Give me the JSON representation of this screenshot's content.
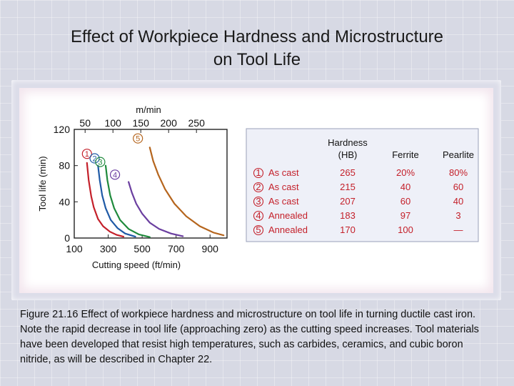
{
  "slide": {
    "title_line1": "Effect of Workpiece Hardness and Microstructure",
    "title_line2": "on Tool Life",
    "caption": "Figure 21.16  Effect of workpiece hardness and microstructure on tool life in turning ductile cast iron.  Note the rapid decrease in tool life (approaching zero) as the cutting speed increases.  Tool materials have been developed that resist high temperatures, such as carbides, ceramics, and cubic boron nitride, as will be described in Chapter 22."
  },
  "chart_data": {
    "type": "line",
    "title": "",
    "xlabel": "Cutting speed (ft/min)",
    "ylabel": "Tool life (min)",
    "top_axis_label": "m/min",
    "xlim": [
      100,
      1000
    ],
    "ylim": [
      0,
      120
    ],
    "x_ticks": [
      100,
      300,
      500,
      700,
      900
    ],
    "x_tick_labels": [
      "100",
      "300",
      "500",
      "700",
      "900"
    ],
    "top_ticks_ftmin": [
      164,
      328,
      492,
      656,
      820
    ],
    "top_tick_labels": [
      "50",
      "100",
      "150",
      "200",
      "250"
    ],
    "y_ticks": [
      0,
      40,
      80,
      120
    ],
    "y_tick_labels": [
      "0",
      "40",
      "80",
      "120"
    ],
    "grid": false,
    "series": [
      {
        "name": "1",
        "color": "#c4202a",
        "points": [
          [
            175,
            83
          ],
          [
            185,
            64
          ],
          [
            200,
            46
          ],
          [
            215,
            34
          ],
          [
            240,
            21
          ],
          [
            270,
            13
          ],
          [
            310,
            7
          ],
          [
            350,
            3.5
          ],
          [
            390,
            1.5
          ]
        ]
      },
      {
        "name": "2",
        "color": "#1f5aa6",
        "points": [
          [
            240,
            80
          ],
          [
            250,
            64
          ],
          [
            265,
            47
          ],
          [
            285,
            33
          ],
          [
            315,
            20
          ],
          [
            355,
            11
          ],
          [
            400,
            5
          ],
          [
            460,
            1.5
          ]
        ]
      },
      {
        "name": "3",
        "color": "#1f8a3c",
        "points": [
          [
            285,
            80
          ],
          [
            295,
            64
          ],
          [
            312,
            47
          ],
          [
            335,
            33
          ],
          [
            370,
            20
          ],
          [
            420,
            10
          ],
          [
            480,
            4
          ],
          [
            545,
            1
          ]
        ]
      },
      {
        "name": "4",
        "color": "#6b3fa0",
        "points": [
          [
            420,
            62
          ],
          [
            440,
            50
          ],
          [
            465,
            38
          ],
          [
            500,
            27
          ],
          [
            545,
            17
          ],
          [
            600,
            10
          ],
          [
            670,
            5
          ],
          [
            740,
            2
          ]
        ]
      },
      {
        "name": "5",
        "color": "#b5651d",
        "points": [
          [
            545,
            100
          ],
          [
            565,
            85
          ],
          [
            595,
            70
          ],
          [
            635,
            54
          ],
          [
            690,
            38
          ],
          [
            760,
            24
          ],
          [
            840,
            13
          ],
          [
            920,
            6
          ],
          [
            980,
            3
          ]
        ]
      }
    ],
    "curve_labels": [
      "1",
      "2",
      "3",
      "4",
      "5"
    ],
    "legend_table": {
      "headers": {
        "hardness_line1": "Hardness",
        "hardness_line2": "(HB)",
        "ferrite": "Ferrite",
        "pearlite": "Pearlite"
      },
      "rows": [
        {
          "num": "1",
          "condition": "As cast",
          "hb": "265",
          "ferrite": "20%",
          "pearlite": "80%"
        },
        {
          "num": "2",
          "condition": "As cast",
          "hb": "215",
          "ferrite": "40",
          "pearlite": "60"
        },
        {
          "num": "3",
          "condition": "As cast",
          "hb": "207",
          "ferrite": "60",
          "pearlite": "40"
        },
        {
          "num": "4",
          "condition": "Annealed",
          "hb": "183",
          "ferrite": "97",
          "pearlite": "3"
        },
        {
          "num": "5",
          "condition": "Annealed",
          "hb": "170",
          "ferrite": "100",
          "pearlite": "—"
        }
      ]
    }
  }
}
